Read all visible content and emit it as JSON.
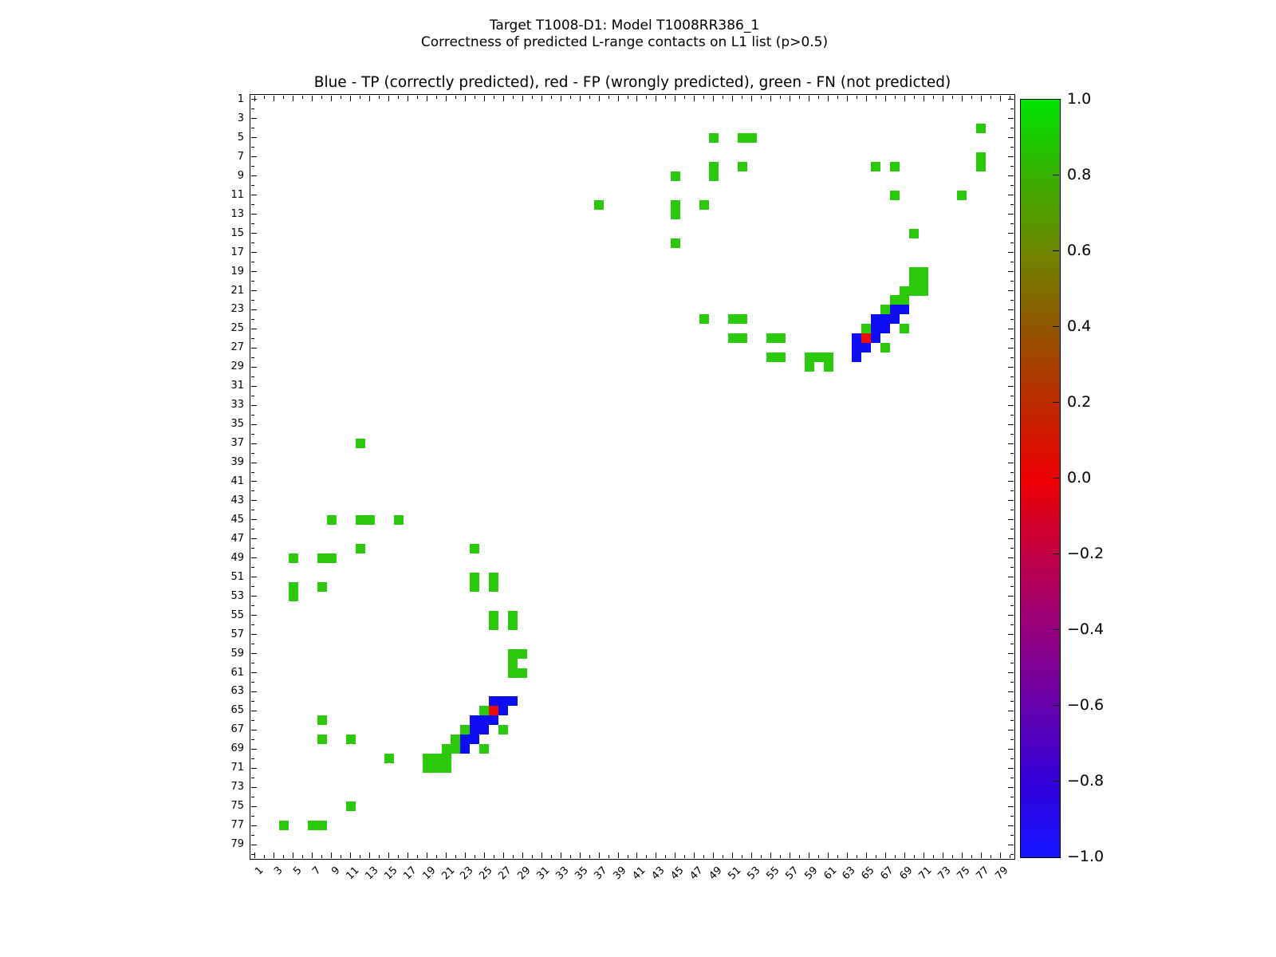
{
  "figure": {
    "title_line1": "Target T1008-D1: Model T1008RR386_1",
    "title_line2": "Correctness of predicted L-range contacts on L1 list (p>0.5)",
    "axes_title": "Blue - TP (correctly predicted), red - FP (wrongly predicted), green - FN (not predicted)"
  },
  "chart_data": {
    "type": "heatmap",
    "title": "Blue - TP (correctly predicted), red - FP (wrongly predicted), green - FN (not predicted)",
    "x_range": [
      1,
      80
    ],
    "y_range": [
      1,
      80
    ],
    "grid": false,
    "x_tick_labels": [
      1,
      3,
      5,
      7,
      9,
      11,
      13,
      15,
      17,
      19,
      21,
      23,
      25,
      27,
      29,
      31,
      33,
      35,
      37,
      39,
      41,
      43,
      45,
      47,
      49,
      51,
      53,
      55,
      57,
      59,
      61,
      63,
      65,
      67,
      69,
      71,
      73,
      75,
      77,
      79
    ],
    "y_tick_labels": [
      1,
      3,
      5,
      7,
      9,
      11,
      13,
      15,
      17,
      19,
      21,
      23,
      25,
      27,
      29,
      31,
      33,
      35,
      37,
      39,
      41,
      43,
      45,
      47,
      49,
      51,
      53,
      55,
      57,
      59,
      61,
      63,
      65,
      67,
      69,
      71,
      73,
      75,
      77,
      79
    ],
    "classes": {
      "TP": {
        "label": "TP (correctly predicted)",
        "color": "#0D0DF2"
      },
      "FP": {
        "label": "FP (wrongly predicted)",
        "color": "#EE0D00"
      },
      "FN": {
        "label": "FN (not predicted)",
        "color": "#2CC80C"
      }
    },
    "cells_TP": [
      [
        64,
        26
      ],
      [
        64,
        27
      ],
      [
        64,
        28
      ],
      [
        65,
        27
      ],
      [
        66,
        24
      ],
      [
        66,
        25
      ],
      [
        66,
        26
      ],
      [
        67,
        24
      ],
      [
        67,
        25
      ],
      [
        68,
        23
      ],
      [
        68,
        24
      ],
      [
        69,
        23
      ],
      [
        26,
        64
      ],
      [
        27,
        64
      ],
      [
        28,
        64
      ],
      [
        27,
        65
      ],
      [
        24,
        66
      ],
      [
        25,
        66
      ],
      [
        26,
        66
      ],
      [
        24,
        67
      ],
      [
        25,
        67
      ],
      [
        23,
        68
      ],
      [
        24,
        68
      ],
      [
        23,
        69
      ]
    ],
    "cells_FP": [
      [
        65,
        26
      ],
      [
        26,
        65
      ]
    ],
    "cells_FN": [
      [
        37,
        12
      ],
      [
        45,
        9
      ],
      [
        45,
        12
      ],
      [
        45,
        13
      ],
      [
        45,
        16
      ],
      [
        48,
        12
      ],
      [
        48,
        24
      ],
      [
        49,
        5
      ],
      [
        49,
        8
      ],
      [
        49,
        9
      ],
      [
        51,
        24
      ],
      [
        51,
        26
      ],
      [
        52,
        5
      ],
      [
        52,
        8
      ],
      [
        52,
        24
      ],
      [
        52,
        26
      ],
      [
        53,
        5
      ],
      [
        55,
        26
      ],
      [
        55,
        28
      ],
      [
        56,
        26
      ],
      [
        56,
        28
      ],
      [
        59,
        28
      ],
      [
        59,
        29
      ],
      [
        60,
        28
      ],
      [
        61,
        28
      ],
      [
        61,
        29
      ],
      [
        65,
        25
      ],
      [
        66,
        8
      ],
      [
        67,
        23
      ],
      [
        67,
        27
      ],
      [
        68,
        8
      ],
      [
        68,
        11
      ],
      [
        68,
        22
      ],
      [
        69,
        21
      ],
      [
        69,
        22
      ],
      [
        69,
        25
      ],
      [
        70,
        15
      ],
      [
        70,
        19
      ],
      [
        70,
        20
      ],
      [
        70,
        21
      ],
      [
        71,
        19
      ],
      [
        71,
        20
      ],
      [
        71,
        21
      ],
      [
        75,
        11
      ],
      [
        77,
        4
      ],
      [
        77,
        7
      ],
      [
        77,
        8
      ],
      [
        12,
        37
      ],
      [
        9,
        45
      ],
      [
        12,
        45
      ],
      [
        13,
        45
      ],
      [
        16,
        45
      ],
      [
        12,
        48
      ],
      [
        24,
        48
      ],
      [
        5,
        49
      ],
      [
        8,
        49
      ],
      [
        9,
        49
      ],
      [
        24,
        51
      ],
      [
        26,
        51
      ],
      [
        5,
        52
      ],
      [
        8,
        52
      ],
      [
        24,
        52
      ],
      [
        26,
        52
      ],
      [
        5,
        53
      ],
      [
        26,
        55
      ],
      [
        28,
        55
      ],
      [
        26,
        56
      ],
      [
        28,
        56
      ],
      [
        28,
        59
      ],
      [
        29,
        59
      ],
      [
        28,
        60
      ],
      [
        28,
        61
      ],
      [
        29,
        61
      ],
      [
        25,
        65
      ],
      [
        8,
        66
      ],
      [
        23,
        67
      ],
      [
        27,
        67
      ],
      [
        8,
        68
      ],
      [
        11,
        68
      ],
      [
        22,
        68
      ],
      [
        21,
        69
      ],
      [
        22,
        69
      ],
      [
        25,
        69
      ],
      [
        15,
        70
      ],
      [
        19,
        70
      ],
      [
        20,
        70
      ],
      [
        21,
        70
      ],
      [
        19,
        71
      ],
      [
        20,
        71
      ],
      [
        21,
        71
      ],
      [
        11,
        75
      ],
      [
        4,
        77
      ],
      [
        7,
        77
      ],
      [
        8,
        77
      ]
    ],
    "colorbar": {
      "tick_labels": [
        "1.0",
        "0.8",
        "0.6",
        "0.4",
        "0.2",
        "0.0",
        "−0.2",
        "−0.4",
        "−0.6",
        "−0.8",
        "−1.0"
      ],
      "tick_values": [
        1.0,
        0.8,
        0.6,
        0.4,
        0.2,
        0.0,
        -0.2,
        -0.4,
        -0.6,
        -0.8,
        -1.0
      ],
      "range": [
        -1.0,
        1.0
      ],
      "gradient_stops": [
        {
          "value": 1.0,
          "color": "#00E400"
        },
        {
          "value": 0.8,
          "color": "#36B000"
        },
        {
          "value": 0.6,
          "color": "#6E8600"
        },
        {
          "value": 0.4,
          "color": "#905600"
        },
        {
          "value": 0.2,
          "color": "#BC2B00"
        },
        {
          "value": 0.0,
          "color": "#EC0000"
        },
        {
          "value": -0.2,
          "color": "#C10043"
        },
        {
          "value": -0.4,
          "color": "#95007F"
        },
        {
          "value": -0.6,
          "color": "#6600AC"
        },
        {
          "value": -0.8,
          "color": "#3300D9"
        },
        {
          "value": -1.0,
          "color": "#1414FF"
        }
      ]
    }
  }
}
